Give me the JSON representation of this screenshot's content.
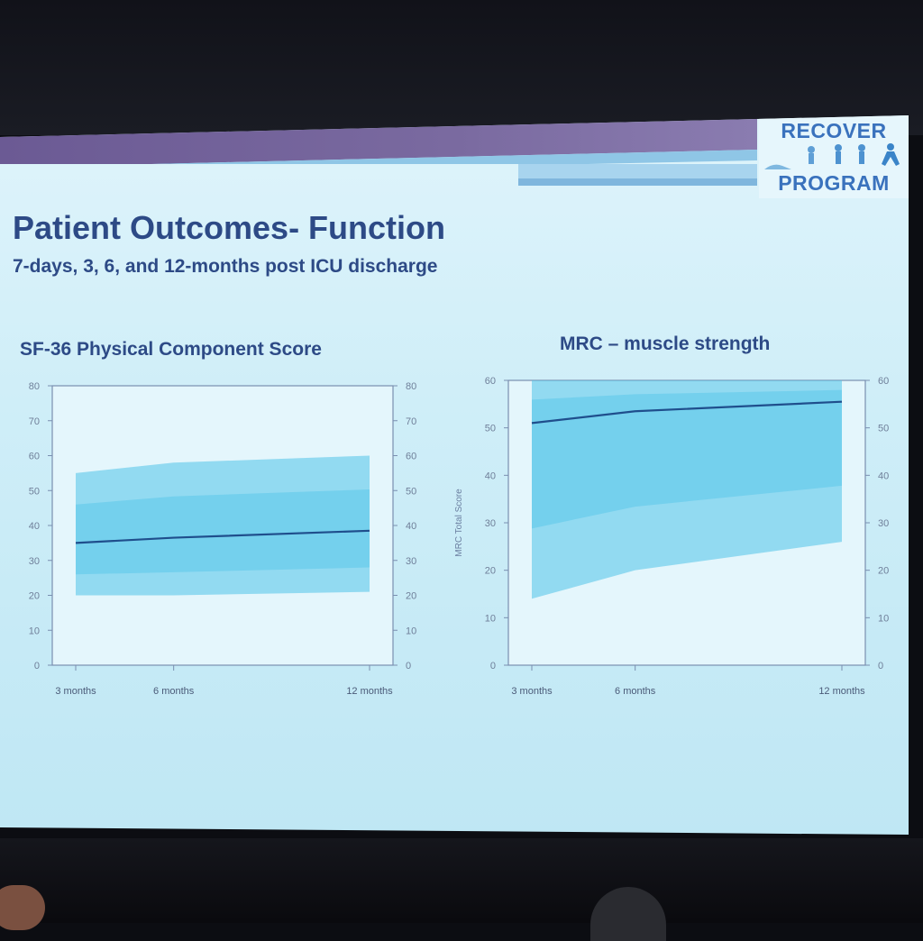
{
  "slide": {
    "logo_line1": "RECOVER",
    "logo_line2": "PROGRAM",
    "title": "Patient Outcomes- Function",
    "subtitle": "7-days, 3, 6, and 12-months post ICU discharge"
  },
  "colors": {
    "title_text": "#2d4a86",
    "band_fill": "#4fc3e8",
    "mean_line": "#1f4e8c",
    "axis": "#7a8fb0",
    "tick_text": "#6f7f99"
  },
  "chart_data": [
    {
      "type": "line",
      "title": "SF-36  Physical Component Score",
      "ylabel": "",
      "xlabel": "",
      "categories": [
        "3 months",
        "6 months",
        "12 months"
      ],
      "x": [
        3,
        6,
        12
      ],
      "ylim": [
        0,
        80
      ],
      "yticks": [
        0,
        10,
        20,
        30,
        40,
        50,
        60,
        70,
        80
      ],
      "right_axis_ticks": [
        0,
        10,
        20,
        30,
        40,
        50,
        60,
        70,
        80
      ],
      "series": [
        {
          "values": [
            35,
            36.5,
            38.5
          ]
        }
      ],
      "spaghetti_band": {
        "lower": [
          20,
          20,
          21
        ],
        "upper": [
          55,
          58,
          60
        ]
      }
    },
    {
      "type": "line",
      "title": "MRC – muscle strength",
      "ylabel": "MRC Total Score",
      "xlabel": "",
      "categories": [
        "3 months",
        "6 months",
        "12 months"
      ],
      "x": [
        3,
        6,
        12
      ],
      "ylim": [
        0,
        60
      ],
      "yticks": [
        0,
        10,
        20,
        30,
        40,
        50,
        60
      ],
      "right_axis_ticks": [
        0,
        10,
        20,
        30,
        40,
        50,
        60
      ],
      "series": [
        {
          "values": [
            51,
            53.5,
            55.5
          ]
        }
      ],
      "spaghetti_band": {
        "lower": [
          14,
          20,
          26
        ],
        "upper": [
          60,
          60,
          60
        ]
      }
    }
  ]
}
